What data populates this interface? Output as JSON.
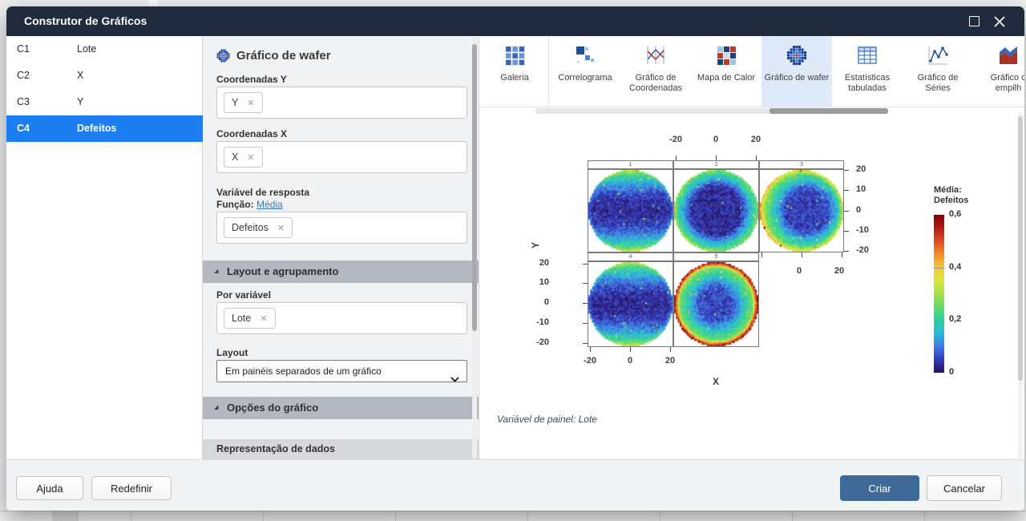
{
  "window": {
    "title": "Construtor de Gráficos"
  },
  "columns_panel": {
    "rows": [
      {
        "id": "C1",
        "name": "Lote",
        "selected": false
      },
      {
        "id": "C2",
        "name": "X",
        "selected": false
      },
      {
        "id": "C3",
        "name": "Y",
        "selected": false
      },
      {
        "id": "C4",
        "name": "Defeitos",
        "selected": true
      }
    ]
  },
  "settings": {
    "title": "Gráfico de wafer",
    "coord_y_label": "Coordenadas Y",
    "coord_y_chip": "Y",
    "coord_x_label": "Coordenadas X",
    "coord_x_chip": "X",
    "response_label": "Variável de resposta",
    "function_label": "Função:",
    "function_link": "Média",
    "response_chip": "Defeitos",
    "layout_group_section": "Layout e agrupamento",
    "by_variable_label": "Por variável",
    "by_variable_chip": "Lote",
    "layout_label": "Layout",
    "layout_value": "Em painéis separados de um gráfico",
    "options_section": "Opções do gráfico",
    "representation_section": "Representação de dados"
  },
  "gallery": {
    "items": [
      {
        "key": "galeria",
        "lines": [
          "Galeria"
        ],
        "icon": "gallery-grid-icon",
        "selected": false
      },
      {
        "key": "correlograma",
        "lines": [
          "Correlograma"
        ],
        "icon": "correlogram-icon",
        "selected": false
      },
      {
        "key": "grafico-de-coordenadas",
        "lines": [
          "Gráfico de",
          "Coordenadas"
        ],
        "icon": "coordinates-plot-icon",
        "selected": false
      },
      {
        "key": "mapa-de-calor",
        "lines": [
          "Mapa de Calor"
        ],
        "icon": "heatmap-icon",
        "selected": false
      },
      {
        "key": "grafico-de-wafer",
        "lines": [
          "Gráfico de wafer"
        ],
        "icon": "wafer-plot-icon",
        "selected": true
      },
      {
        "key": "estatisticas-tabuladas",
        "lines": [
          "Estatísticas",
          "tabuladas"
        ],
        "icon": "table-stats-icon",
        "selected": false
      },
      {
        "key": "grafico-de-series",
        "lines": [
          "Gráfico de",
          "Séries"
        ],
        "icon": "series-plot-icon",
        "selected": false
      },
      {
        "key": "grafico-empilhado",
        "lines": [
          "Gráfico d",
          "empilh"
        ],
        "icon": "stacked-area-icon",
        "selected": false
      }
    ]
  },
  "chart_data": {
    "type": "heatmap",
    "subtype": "wafer-multipanel",
    "caption": "Variável de painel: Lote",
    "xlabel": "X",
    "ylabel": "Y",
    "axis_range": [
      -20,
      20
    ],
    "top_axis_ticks": [
      "-20",
      "0",
      "20"
    ],
    "right_axis_ticks": [
      "20",
      "10",
      "0",
      "-10",
      "-20"
    ],
    "left_axis_ticks": [
      "20",
      "10",
      "0",
      "-10",
      "-20"
    ],
    "bottom_axis_ticks": [
      "-20",
      "0",
      "20"
    ],
    "col3_axis_ticks": [
      "0",
      "20"
    ],
    "panels": [
      {
        "number": "1",
        "row": 0,
        "col": 0,
        "pattern": "dark-horizontal-band",
        "seed": 11
      },
      {
        "number": "2",
        "row": 0,
        "col": 1,
        "pattern": "large-dark-blob",
        "seed": 22
      },
      {
        "number": "3",
        "row": 0,
        "col": 2,
        "pattern": "blob-green-rim",
        "seed": 33
      },
      {
        "number": "4",
        "row": 1,
        "col": 0,
        "pattern": "dark-horizontal-band",
        "seed": 44
      },
      {
        "number": "5",
        "row": 1,
        "col": 1,
        "pattern": "hot-rim",
        "seed": 55
      }
    ],
    "legend": {
      "title_lines": [
        "Média:",
        "Defeitos"
      ],
      "min": 0,
      "max": 0.6,
      "ticks": [
        {
          "label": "0,6",
          "value": 0.6
        },
        {
          "label": "0,4",
          "value": 0.4
        },
        {
          "label": "0,2",
          "value": 0.2
        },
        {
          "label": "0",
          "value": 0
        }
      ],
      "colormap_stops": [
        {
          "v": 0.0,
          "c": "#23125f"
        },
        {
          "v": 0.05,
          "c": "#3438bb"
        },
        {
          "v": 0.1,
          "c": "#3c7ce2"
        },
        {
          "v": 0.15,
          "c": "#2cb8d8"
        },
        {
          "v": 0.2,
          "c": "#2fd0a0"
        },
        {
          "v": 0.25,
          "c": "#63da69"
        },
        {
          "v": 0.3,
          "c": "#a2e14a"
        },
        {
          "v": 0.35,
          "c": "#dae63f"
        },
        {
          "v": 0.4,
          "c": "#f5c73a"
        },
        {
          "v": 0.45,
          "c": "#f28c2a"
        },
        {
          "v": 0.5,
          "c": "#dc4f1f"
        },
        {
          "v": 0.55,
          "c": "#b31a14"
        },
        {
          "v": 0.6,
          "c": "#7a0403"
        }
      ]
    }
  },
  "footer": {
    "help": "Ajuda",
    "reset": "Redefinir",
    "create": "Criar",
    "cancel": "Cancelar"
  },
  "colors": {
    "titlebar": "#1f2b3d",
    "selected-row": "#1d7ef2",
    "accent-link": "#3077c0",
    "create-button": "#3d6a99",
    "section-bar": "#b4b9c1",
    "subsection-bar": "#d6d8db",
    "gallery-selected": "#dfeaf8"
  }
}
